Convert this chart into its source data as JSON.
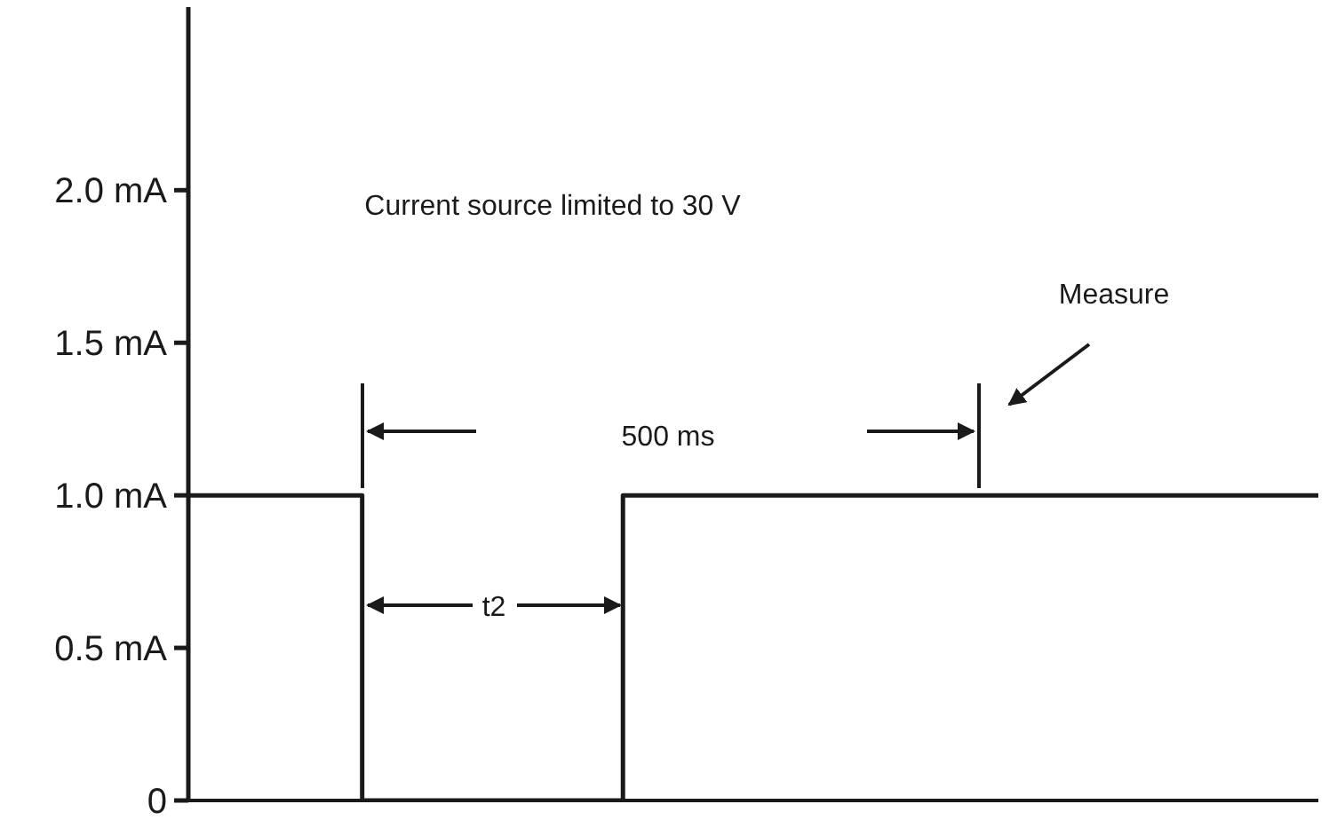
{
  "chart_data": {
    "type": "step",
    "categories": [
      null,
      null,
      null,
      null,
      null,
      null,
      null,
      null,
      null,
      null,
      null,
      null,
      null,
      null
    ],
    "values": [
      1.0,
      1.0,
      0,
      0,
      0,
      1.0,
      1.0,
      1.0,
      1.0,
      1.0,
      1.0,
      1.0,
      1.0,
      1.0
    ],
    "color": "#1a1a1a",
    "ylim": [
      0,
      2.6
    ],
    "yticks": [
      {
        "value": 0,
        "label": "0"
      },
      {
        "value": 0.5,
        "label": "0.5 mA"
      },
      {
        "value": 1.0,
        "label": "1.0 mA"
      },
      {
        "value": 1.5,
        "label": "1.5 mA"
      },
      {
        "value": 2.0,
        "label": "2.0 mA"
      }
    ],
    "tick_labels": "y",
    "annotations": [
      "Current source limited to 30 V",
      "500 ms",
      "t2",
      "Measure"
    ]
  }
}
